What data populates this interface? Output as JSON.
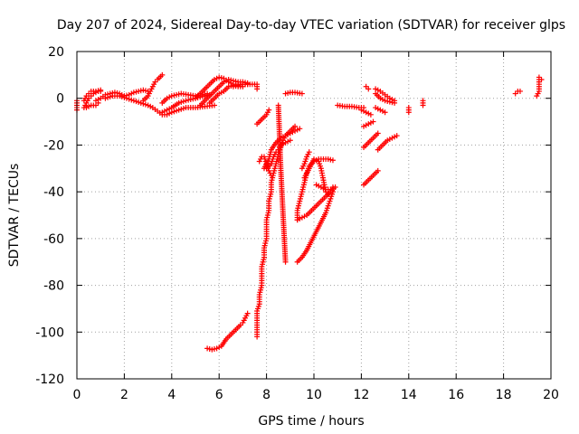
{
  "chart_data": {
    "type": "scatter",
    "title": "Day 207 of 2024, Sidereal Day-to-day VTEC variation (SDTVAR) for receiver glps",
    "xlabel": "GPS time / hours",
    "ylabel": "SDTVAR / TECUs",
    "xlim": [
      0,
      20
    ],
    "ylim": [
      -120,
      20
    ],
    "xticks": [
      0,
      2,
      4,
      6,
      8,
      10,
      12,
      14,
      16,
      18,
      20
    ],
    "yticks": [
      20,
      0,
      -20,
      -40,
      -60,
      -80,
      -100,
      -120
    ],
    "grid": true,
    "marker": "+",
    "series_color": "#ff0000",
    "segments": [
      [
        [
          0.0,
          -5
        ],
        [
          0.0,
          -3
        ],
        [
          0.0,
          -1
        ]
      ],
      [
        [
          0.3,
          -4
        ],
        [
          0.4,
          -2
        ],
        [
          0.5,
          0
        ],
        [
          0.6,
          1
        ],
        [
          0.7,
          2
        ],
        [
          0.8,
          2.5
        ],
        [
          0.9,
          3
        ],
        [
          1.0,
          3
        ]
      ],
      [
        [
          0.3,
          -1
        ],
        [
          0.4,
          1
        ],
        [
          0.5,
          2
        ],
        [
          0.6,
          3
        ],
        [
          0.8,
          3
        ],
        [
          1.0,
          3.5
        ]
      ],
      [
        [
          0.4,
          -4
        ],
        [
          0.6,
          -3
        ],
        [
          0.8,
          -3
        ],
        [
          0.9,
          -2
        ]
      ],
      [
        [
          0.8,
          -1
        ],
        [
          1.0,
          0
        ],
        [
          1.2,
          1.5
        ],
        [
          1.4,
          2
        ],
        [
          1.6,
          2.5
        ],
        [
          1.8,
          2
        ],
        [
          2.0,
          1
        ],
        [
          2.2,
          1.5
        ],
        [
          2.4,
          2.5
        ],
        [
          2.6,
          3
        ],
        [
          2.8,
          3.5
        ],
        [
          3.0,
          3
        ]
      ],
      [
        [
          1.2,
          0
        ],
        [
          1.5,
          1
        ],
        [
          1.8,
          1
        ],
        [
          2.1,
          0
        ],
        [
          2.4,
          -1
        ],
        [
          2.7,
          -2
        ],
        [
          3.0,
          -3
        ],
        [
          3.2,
          -4
        ],
        [
          3.4,
          -5.5
        ],
        [
          3.6,
          -7
        ],
        [
          3.8,
          -7
        ],
        [
          4.0,
          -6
        ],
        [
          4.3,
          -5
        ],
        [
          4.6,
          -4
        ],
        [
          5.0,
          -4
        ],
        [
          5.4,
          -3.5
        ],
        [
          5.8,
          -3
        ]
      ],
      [
        [
          2.8,
          -1
        ],
        [
          3.0,
          1
        ],
        [
          3.1,
          3
        ],
        [
          3.2,
          5
        ],
        [
          3.3,
          7
        ],
        [
          3.4,
          8
        ],
        [
          3.6,
          10
        ]
      ],
      [
        [
          3.6,
          -2
        ],
        [
          3.8,
          0
        ],
        [
          4.0,
          1
        ],
        [
          4.2,
          1.5
        ],
        [
          4.4,
          2
        ],
        [
          4.7,
          1.5
        ],
        [
          5.0,
          1
        ],
        [
          5.3,
          1.5
        ],
        [
          5.5,
          2
        ]
      ],
      [
        [
          3.6,
          -6
        ],
        [
          3.8,
          -5
        ],
        [
          4.0,
          -4
        ],
        [
          4.3,
          -2
        ],
        [
          4.6,
          -1
        ],
        [
          5.0,
          0
        ],
        [
          5.4,
          1
        ],
        [
          5.6,
          1.5
        ]
      ],
      [
        [
          5.0,
          0
        ],
        [
          5.2,
          2
        ],
        [
          5.4,
          4
        ],
        [
          5.6,
          6
        ],
        [
          5.8,
          8
        ],
        [
          6.0,
          9
        ],
        [
          6.2,
          8.5
        ],
        [
          6.4,
          7
        ],
        [
          6.6,
          6
        ],
        [
          6.8,
          6
        ],
        [
          7.0,
          6
        ],
        [
          7.2,
          6
        ]
      ],
      [
        [
          5.2,
          -3
        ],
        [
          5.4,
          -1
        ],
        [
          5.6,
          1
        ],
        [
          5.8,
          3
        ],
        [
          6.0,
          5
        ],
        [
          6.2,
          7
        ],
        [
          6.4,
          8
        ],
        [
          6.6,
          7.5
        ],
        [
          6.8,
          7
        ],
        [
          7.0,
          7
        ],
        [
          7.2,
          6.5
        ]
      ],
      [
        [
          5.6,
          -2
        ],
        [
          5.8,
          0
        ],
        [
          6.0,
          2
        ],
        [
          6.2,
          3
        ],
        [
          6.4,
          5
        ],
        [
          6.6,
          5.5
        ],
        [
          6.8,
          5
        ],
        [
          7.0,
          5
        ]
      ],
      [
        [
          6.6,
          5
        ],
        [
          6.8,
          5.5
        ],
        [
          7.0,
          6
        ],
        [
          7.2,
          6
        ],
        [
          7.5,
          6
        ]
      ],
      [
        [
          7.6,
          6
        ],
        [
          7.6,
          4
        ]
      ],
      [
        [
          5.5,
          -107
        ],
        [
          5.7,
          -107.5
        ],
        [
          5.9,
          -107
        ],
        [
          6.1,
          -106
        ],
        [
          6.3,
          -103
        ],
        [
          6.5,
          -101
        ],
        [
          6.7,
          -99
        ],
        [
          6.9,
          -97
        ],
        [
          7.0,
          -96
        ],
        [
          7.1,
          -94
        ],
        [
          7.2,
          -92
        ]
      ],
      [
        [
          7.6,
          -102
        ],
        [
          7.6,
          -98
        ],
        [
          7.6,
          -94
        ],
        [
          7.6,
          -91
        ],
        [
          7.7,
          -88
        ],
        [
          7.7,
          -84
        ],
        [
          7.8,
          -80
        ],
        [
          7.8,
          -76
        ],
        [
          7.8,
          -72
        ],
        [
          7.9,
          -68
        ],
        [
          7.9,
          -64
        ],
        [
          8.0,
          -60
        ],
        [
          8.0,
          -56
        ],
        [
          8.0,
          -52
        ],
        [
          8.1,
          -48
        ],
        [
          8.1,
          -44
        ],
        [
          8.2,
          -40
        ],
        [
          8.2,
          -36
        ],
        [
          8.3,
          -32
        ],
        [
          8.4,
          -28
        ],
        [
          8.5,
          -24
        ],
        [
          8.6,
          -21
        ],
        [
          8.7,
          -18
        ],
        [
          8.8,
          -16
        ],
        [
          9.0,
          -14
        ],
        [
          9.2,
          -12
        ]
      ],
      [
        [
          7.9,
          -30
        ],
        [
          8.1,
          -26
        ],
        [
          8.2,
          -22
        ],
        [
          8.4,
          -19
        ],
        [
          8.6,
          -17
        ],
        [
          8.8,
          -16
        ],
        [
          9.0,
          -15
        ],
        [
          9.2,
          -14
        ],
        [
          9.4,
          -13
        ]
      ],
      [
        [
          7.7,
          -27
        ],
        [
          7.8,
          -25
        ],
        [
          7.9,
          -25
        ],
        [
          8.0,
          -28
        ],
        [
          8.1,
          -31
        ],
        [
          8.2,
          -33
        ]
      ],
      [
        [
          8.0,
          -30
        ],
        [
          8.2,
          -28
        ],
        [
          8.3,
          -25
        ],
        [
          8.4,
          -23
        ],
        [
          8.5,
          -22
        ],
        [
          8.6,
          -20
        ],
        [
          8.8,
          -19
        ],
        [
          9.0,
          -18
        ]
      ],
      [
        [
          7.6,
          -11
        ],
        [
          7.8,
          -9
        ],
        [
          8.0,
          -7
        ],
        [
          8.1,
          -5
        ]
      ],
      [
        [
          8.8,
          2
        ],
        [
          9.0,
          2.5
        ],
        [
          9.2,
          2.5
        ],
        [
          9.5,
          2
        ]
      ],
      [
        [
          8.5,
          -3
        ],
        [
          8.6,
          -30
        ],
        [
          8.7,
          -50
        ],
        [
          8.8,
          -70
        ]
      ],
      [
        [
          9.3,
          -52
        ],
        [
          9.3,
          -48
        ],
        [
          9.4,
          -44
        ],
        [
          9.5,
          -40
        ],
        [
          9.6,
          -36
        ],
        [
          9.7,
          -32
        ],
        [
          9.8,
          -29
        ],
        [
          10.0,
          -27
        ],
        [
          10.2,
          -26
        ],
        [
          10.4,
          -26
        ],
        [
          10.6,
          -26
        ],
        [
          10.8,
          -26.5
        ]
      ],
      [
        [
          9.3,
          -52
        ],
        [
          9.5,
          -51
        ],
        [
          9.7,
          -50
        ],
        [
          9.9,
          -48
        ],
        [
          10.1,
          -46
        ],
        [
          10.3,
          -44
        ],
        [
          10.5,
          -42
        ],
        [
          10.7,
          -40
        ],
        [
          10.9,
          -38
        ]
      ],
      [
        [
          9.3,
          -70
        ],
        [
          9.5,
          -68
        ],
        [
          9.7,
          -65
        ],
        [
          9.9,
          -61
        ],
        [
          10.1,
          -57
        ],
        [
          10.3,
          -53
        ],
        [
          10.5,
          -49
        ],
        [
          10.6,
          -46
        ],
        [
          10.7,
          -43
        ],
        [
          10.8,
          -40
        ]
      ],
      [
        [
          9.5,
          -30
        ],
        [
          9.6,
          -28
        ],
        [
          9.7,
          -25
        ],
        [
          9.8,
          -23
        ]
      ],
      [
        [
          9.6,
          -34
        ],
        [
          9.8,
          -30
        ],
        [
          10.0,
          -26
        ],
        [
          10.2,
          -27
        ],
        [
          10.3,
          -30
        ],
        [
          10.4,
          -35
        ],
        [
          10.5,
          -40
        ],
        [
          10.6,
          -41
        ],
        [
          10.7,
          -40
        ]
      ],
      [
        [
          10.1,
          -37
        ],
        [
          10.3,
          -38
        ],
        [
          10.5,
          -39
        ],
        [
          10.7,
          -39
        ],
        [
          10.8,
          -38
        ]
      ],
      [
        [
          11.0,
          -3
        ],
        [
          11.3,
          -3.5
        ],
        [
          11.6,
          -3.5
        ],
        [
          11.9,
          -4
        ],
        [
          12.1,
          -4
        ]
      ],
      [
        [
          12.0,
          -5
        ],
        [
          12.2,
          -6
        ],
        [
          12.4,
          -7
        ]
      ],
      [
        [
          12.2,
          5
        ],
        [
          12.3,
          4
        ]
      ],
      [
        [
          12.6,
          2
        ],
        [
          12.8,
          0
        ],
        [
          13.0,
          -1
        ],
        [
          13.2,
          -1.5
        ],
        [
          13.4,
          -2
        ]
      ],
      [
        [
          12.6,
          4
        ],
        [
          12.8,
          3
        ],
        [
          13.0,
          1.5
        ],
        [
          13.2,
          0
        ],
        [
          13.4,
          -1
        ]
      ],
      [
        [
          12.6,
          -4
        ],
        [
          12.8,
          -5
        ],
        [
          13.0,
          -6
        ]
      ],
      [
        [
          12.1,
          -12
        ],
        [
          12.3,
          -11
        ],
        [
          12.5,
          -10
        ]
      ],
      [
        [
          12.1,
          -21
        ],
        [
          12.3,
          -19
        ],
        [
          12.5,
          -17
        ],
        [
          12.7,
          -15
        ]
      ],
      [
        [
          12.1,
          -37
        ],
        [
          12.3,
          -35
        ],
        [
          12.5,
          -33
        ],
        [
          12.7,
          -31
        ]
      ],
      [
        [
          12.7,
          -22
        ],
        [
          12.9,
          -20
        ],
        [
          13.1,
          -18
        ],
        [
          13.3,
          -17
        ],
        [
          13.5,
          -16
        ]
      ],
      [
        [
          14.0,
          -4
        ],
        [
          14.0,
          -6
        ]
      ],
      [
        [
          14.6,
          -1
        ],
        [
          14.6,
          -3
        ]
      ],
      [
        [
          18.5,
          2
        ],
        [
          18.6,
          3
        ],
        [
          18.7,
          3
        ]
      ],
      [
        [
          19.4,
          1
        ],
        [
          19.5,
          3
        ],
        [
          19.5,
          6
        ],
        [
          19.5,
          9
        ],
        [
          19.6,
          8
        ]
      ]
    ]
  }
}
